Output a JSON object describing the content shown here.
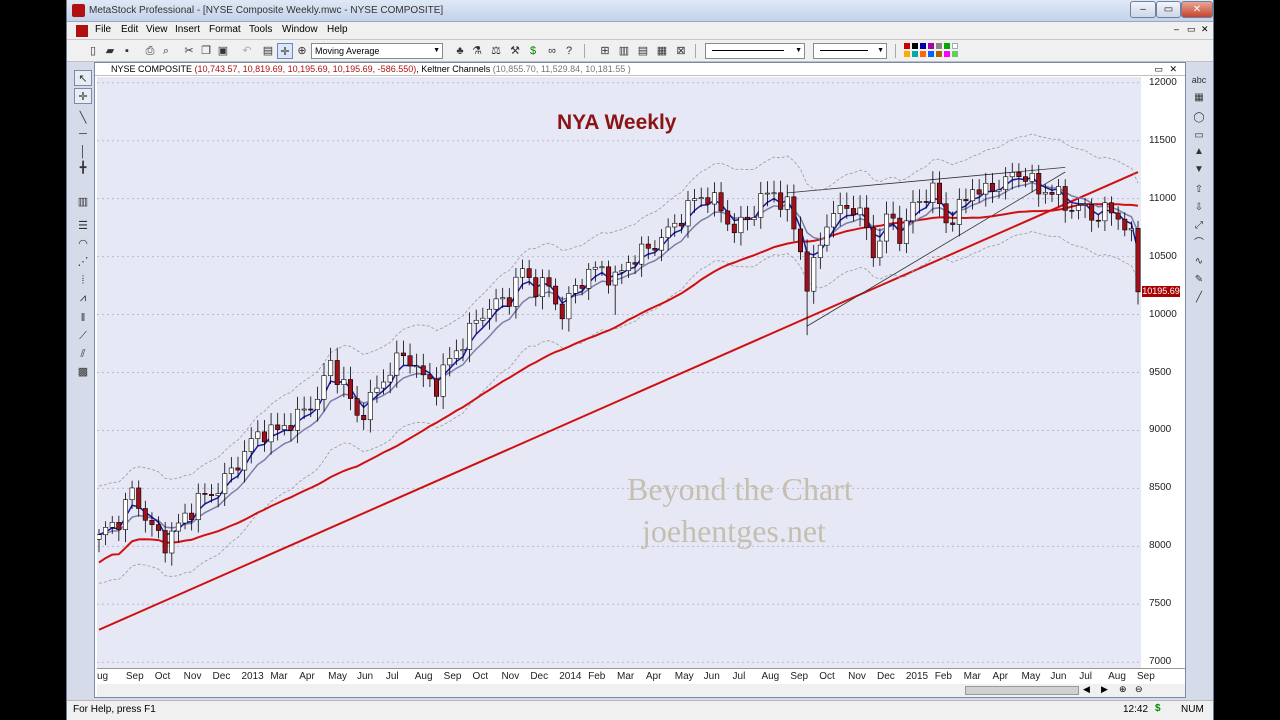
{
  "window": {
    "title": "MetaStock Professional - [NYSE Composite Weekly.mwc - NYSE COMPOSITE]",
    "minimize": "–",
    "restore": "▭",
    "close": "✕",
    "mdi_minimize": "–",
    "mdi_restore": "▭",
    "mdi_close": "✕"
  },
  "menu": [
    "File",
    "Edit",
    "View",
    "Insert",
    "Format",
    "Tools",
    "Window",
    "Help"
  ],
  "toolbar": {
    "indicator_select": "Moving Average",
    "line_style": "",
    "line_weight": ""
  },
  "chart_header": {
    "symbol": "NYSE COMPOSITE",
    "ohlc": "(10,743.57, 10,819.69, 10,195.69, 10,195.69, -586.550)",
    "indicator": ", Keltner Channels",
    "indicator_values": "(10,855.70, 11,529.84, 10,181.55 )"
  },
  "statusbar": {
    "help": "For Help, press F1",
    "time": "12:42",
    "currency": "$",
    "num": "NUM"
  },
  "chart_data": {
    "type": "candlestick",
    "title": "NYA Weekly",
    "watermark_line1": "Beyond the Chart",
    "watermark_line2": "joehentges.net",
    "last_price_label": "10195.69",
    "y_ticks": [
      "12000",
      "11500",
      "11000",
      "10500",
      "10000",
      "9500",
      "9000",
      "8500",
      "8000",
      "7500",
      "7000"
    ],
    "ylim": [
      6950,
      12050
    ],
    "x_labels": [
      "ug",
      "Sep",
      "Oct",
      "Nov",
      "Dec",
      "2013",
      "Mar",
      "Apr",
      "May",
      "Jun",
      "Jul",
      "Aug",
      "Sep",
      "Oct",
      "Nov",
      "Dec",
      "2014",
      "Feb",
      "Mar",
      "Apr",
      "May",
      "Jun",
      "Jul",
      "Aug",
      "Sep",
      "Oct",
      "Nov",
      "Dec",
      "2015",
      "Feb",
      "Mar",
      "Apr",
      "May",
      "Jun",
      "Jul",
      "Aug",
      "Sep"
    ],
    "price_path": [
      [
        0,
        8100
      ],
      [
        3,
        8230
      ],
      [
        5,
        8470
      ],
      [
        8,
        8150
      ],
      [
        10,
        8030
      ],
      [
        12,
        8180
      ],
      [
        15,
        8400
      ],
      [
        17,
        8450
      ],
      [
        20,
        8640
      ],
      [
        23,
        8900
      ],
      [
        25,
        9000
      ],
      [
        27,
        8990
      ],
      [
        29,
        9080
      ],
      [
        31,
        9160
      ],
      [
        33,
        9290
      ],
      [
        35,
        9570
      ],
      [
        37,
        9400
      ],
      [
        39,
        9110
      ],
      [
        41,
        9260
      ],
      [
        43,
        9440
      ],
      [
        45,
        9610
      ],
      [
        47,
        9630
      ],
      [
        49,
        9450
      ],
      [
        51,
        9390
      ],
      [
        53,
        9610
      ],
      [
        55,
        9770
      ],
      [
        58,
        10020
      ],
      [
        60,
        10090
      ],
      [
        62,
        10160
      ],
      [
        64,
        10380
      ],
      [
        66,
        10240
      ],
      [
        68,
        10240
      ],
      [
        70,
        10000
      ],
      [
        72,
        10240
      ],
      [
        74,
        10360
      ],
      [
        76,
        10400
      ],
      [
        78,
        10290
      ],
      [
        80,
        10460
      ],
      [
        82,
        10530
      ],
      [
        84,
        10610
      ],
      [
        86,
        10710
      ],
      [
        88,
        10850
      ],
      [
        90,
        10990
      ],
      [
        92,
        11030
      ],
      [
        94,
        10900
      ],
      [
        96,
        10730
      ],
      [
        98,
        10820
      ],
      [
        100,
        11000
      ],
      [
        102,
        11050
      ],
      [
        104,
        10930
      ],
      [
        106,
        10560
      ],
      [
        107,
        10250
      ],
      [
        108,
        10410
      ],
      [
        110,
        10810
      ],
      [
        112,
        10900
      ],
      [
        114,
        10940
      ],
      [
        116,
        10750
      ],
      [
        117,
        10500
      ],
      [
        118,
        10700
      ],
      [
        120,
        10850
      ],
      [
        121,
        10650
      ],
      [
        122,
        10820
      ],
      [
        124,
        10990
      ],
      [
        126,
        11080
      ],
      [
        128,
        10800
      ],
      [
        130,
        10900
      ],
      [
        132,
        11100
      ],
      [
        134,
        11050
      ],
      [
        136,
        11130
      ],
      [
        138,
        11190
      ],
      [
        140,
        11220
      ],
      [
        142,
        11050
      ],
      [
        144,
        11090
      ],
      [
        146,
        10930
      ],
      [
        148,
        10940
      ],
      [
        150,
        10840
      ],
      [
        152,
        10900
      ],
      [
        154,
        10840
      ],
      [
        156,
        10743.57
      ],
      [
        157,
        10195.69
      ]
    ],
    "series": [
      {
        "name": "",
        "color": "#1a1aa0",
        "kind": "ema-short"
      },
      {
        "name": "",
        "color": "#7a7fa8",
        "kind": "ema-mid"
      },
      {
        "name": "",
        "color": "#d01010",
        "kind": "ma-long"
      },
      {
        "name": "",
        "color": "#999999",
        "kind": "keltner-bands"
      }
    ],
    "trendline": {
      "from": [
        0,
        7280
      ],
      "to": [
        1000,
        11230
      ],
      "color": "#d01010"
    },
    "candle_up_color": "#ffffff",
    "candle_down_color": "#a0101a"
  }
}
